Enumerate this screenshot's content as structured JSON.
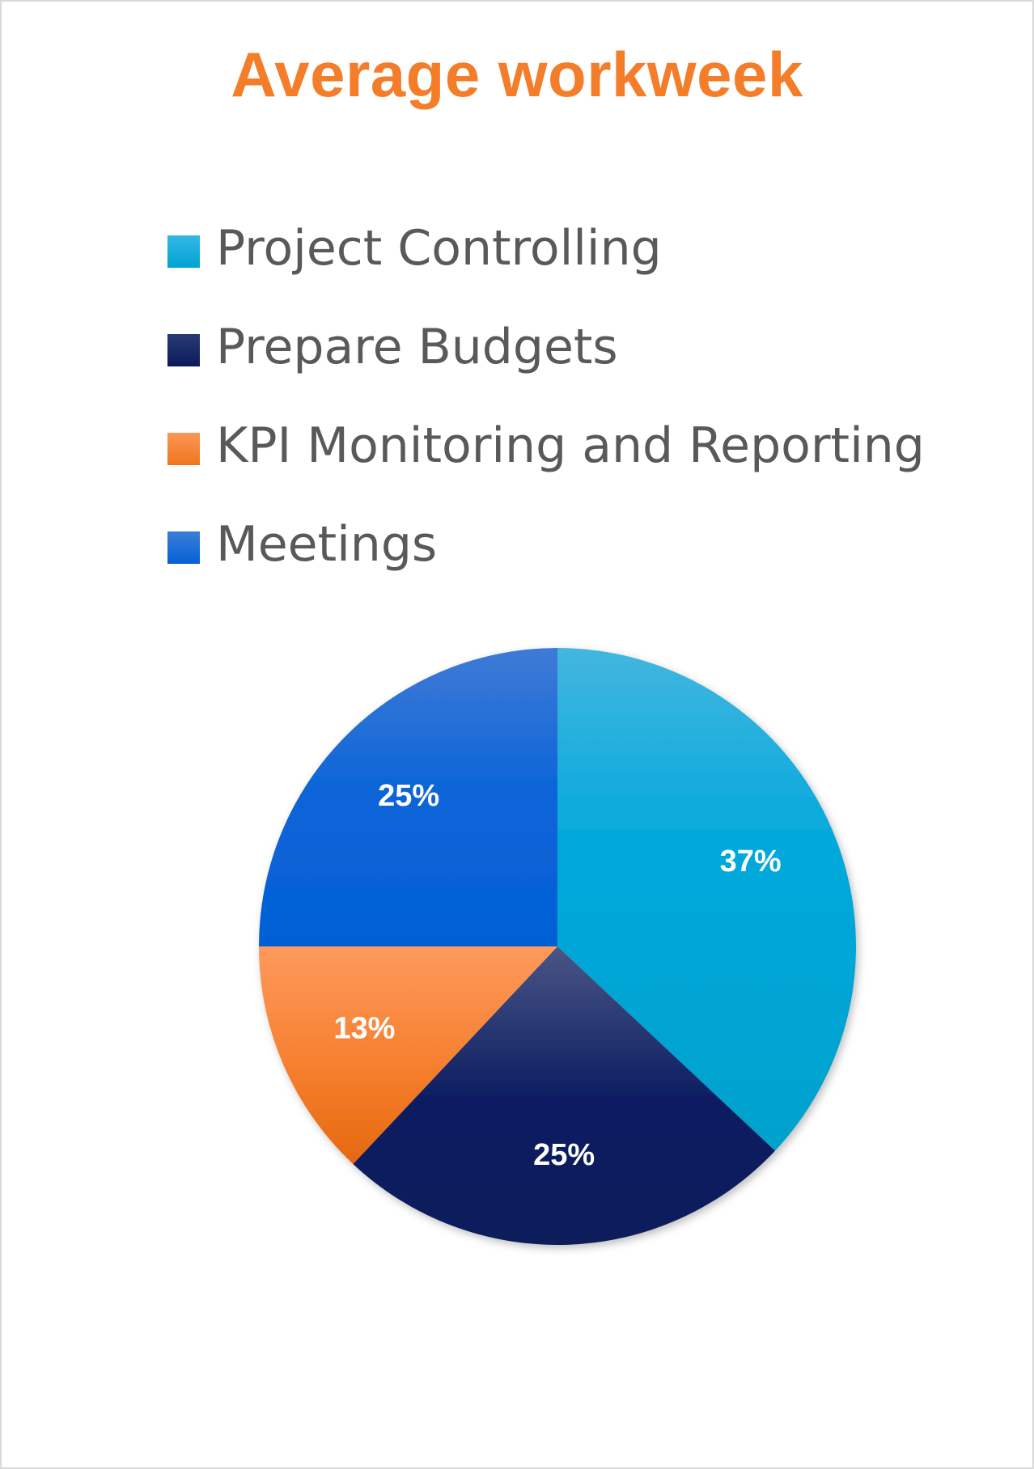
{
  "chart_data": {
    "type": "pie",
    "title": "Average workweek",
    "categories": [
      "Project Controlling",
      "Prepare Budgets",
      "KPI Monitoring and Reporting",
      "Meetings"
    ],
    "values": [
      37,
      25,
      13,
      25
    ],
    "data_labels": [
      "37%",
      "25%",
      "13%",
      "25%"
    ],
    "colors": [
      "#00a8dc",
      "#0d1f62",
      "#f47d2a",
      "#0a64d8"
    ],
    "legend_position": "top"
  }
}
